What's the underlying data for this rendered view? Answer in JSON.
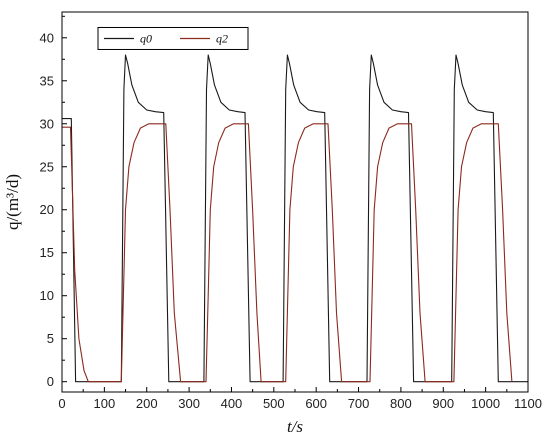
{
  "chart_data": {
    "type": "line",
    "xlabel": "t/s",
    "ylabel": "q/(m³/d)",
    "xlim": [
      0,
      1100
    ],
    "ylim": [
      -1.2,
      43
    ],
    "xticks": [
      0,
      100,
      200,
      300,
      400,
      500,
      600,
      700,
      800,
      900,
      1000,
      1100
    ],
    "yticks": [
      0,
      5,
      10,
      15,
      20,
      25,
      30,
      35,
      40
    ],
    "grid": false,
    "legend_position": "top-left",
    "colors": {
      "q0": "#1a1a1a",
      "q2": "#8b2a1e"
    },
    "series": [
      {
        "name": "q0",
        "x": [
          0,
          22,
          32,
          140,
          146,
          150,
          155,
          165,
          180,
          200,
          220,
          240,
          252,
          335,
          341,
          345,
          350,
          360,
          375,
          395,
          415,
          432,
          444,
          522,
          528,
          532,
          537,
          547,
          562,
          582,
          602,
          620,
          632,
          720,
          726,
          730,
          735,
          745,
          760,
          780,
          800,
          818,
          830,
          920,
          926,
          930,
          935,
          945,
          960,
          980,
          1000,
          1018,
          1030,
          1100
        ],
        "y": [
          30.6,
          30.6,
          0,
          0,
          34,
          38,
          37,
          34.5,
          32.5,
          31.6,
          31.4,
          31.3,
          0,
          0,
          34,
          38,
          37,
          34.5,
          32.5,
          31.6,
          31.4,
          31.3,
          0,
          0,
          34,
          38,
          37,
          34.5,
          32.5,
          31.6,
          31.4,
          31.3,
          0,
          0,
          34,
          38,
          37,
          34.5,
          32.5,
          31.6,
          31.4,
          31.3,
          0,
          0,
          34,
          38,
          37,
          34.5,
          32.5,
          31.6,
          31.4,
          31.3,
          0,
          0
        ]
      },
      {
        "name": "q2",
        "x": [
          0,
          20,
          24,
          30,
          40,
          52,
          62,
          140,
          145,
          150,
          158,
          170,
          185,
          205,
          225,
          245,
          255,
          265,
          280,
          340,
          345,
          350,
          358,
          370,
          385,
          405,
          425,
          440,
          450,
          460,
          470,
          528,
          533,
          538,
          546,
          558,
          573,
          593,
          613,
          628,
          638,
          648,
          660,
          727,
          732,
          737,
          745,
          757,
          772,
          792,
          812,
          825,
          835,
          845,
          857,
          925,
          930,
          935,
          943,
          955,
          970,
          990,
          1010,
          1030,
          1040,
          1050,
          1062
        ],
        "y": [
          29.6,
          29.6,
          23,
          13,
          5,
          1.3,
          0,
          0,
          10,
          20,
          25,
          27.8,
          29.5,
          30,
          30,
          30,
          20,
          8,
          0,
          0,
          10,
          20,
          25,
          27.8,
          29.5,
          30,
          30,
          30,
          20,
          8,
          0,
          0,
          10,
          20,
          25,
          27.8,
          29.5,
          30,
          30,
          30,
          20,
          8,
          0,
          0,
          10,
          20,
          25,
          27.8,
          29.5,
          30,
          30,
          30,
          20,
          8,
          0,
          0,
          10,
          20,
          25,
          27.8,
          29.5,
          30,
          30,
          30,
          20,
          8,
          0
        ]
      }
    ]
  }
}
